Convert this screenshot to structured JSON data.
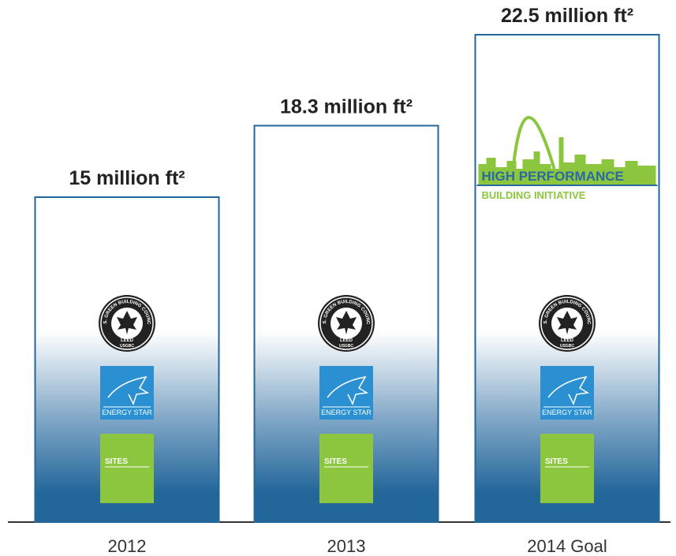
{
  "chart_data": {
    "type": "bar",
    "categories": [
      "2012",
      "2013",
      "2014 Goal"
    ],
    "values": [
      15,
      18.3,
      22.5
    ],
    "value_labels": [
      "15 million ft²",
      "18.3 million ft²",
      "22.5 million ft²"
    ],
    "color": "#23669a"
  },
  "logo_texts": {
    "leed": "LEED",
    "usgbc": "USGBC",
    "usgbc_ring": "U.S. GREEN BUILDING COUNCIL",
    "energy_star": "ENERGY STAR",
    "sites": "SITES",
    "hpbi_line1": "HIGH PERFORMANCE",
    "hpbi_line2": "BUILDING INITIATIVE"
  }
}
